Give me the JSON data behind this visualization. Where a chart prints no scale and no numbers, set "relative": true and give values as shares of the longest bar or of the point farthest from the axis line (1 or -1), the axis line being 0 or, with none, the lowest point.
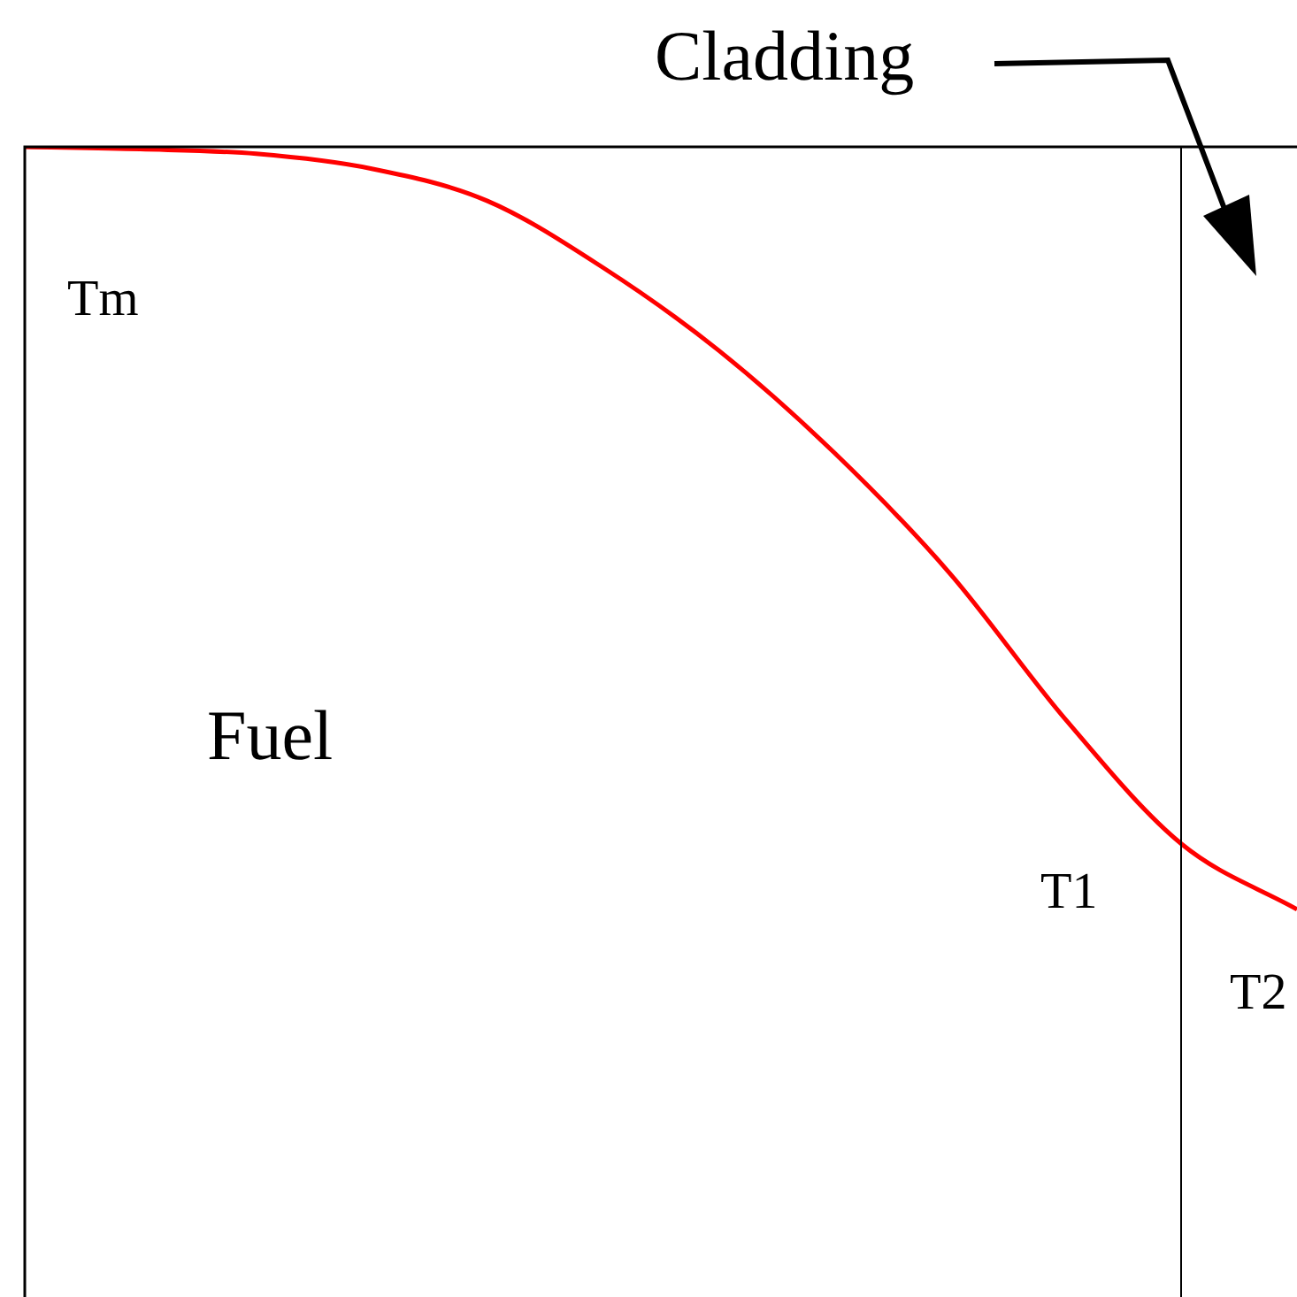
{
  "chart_data": {
    "type": "line",
    "relative": true,
    "color": "#ff0000",
    "categories": [
      null,
      null,
      null,
      null,
      null,
      null,
      null,
      null,
      null,
      null,
      null,
      null
    ],
    "values": [
      1,
      0.998,
      0.994,
      0.981,
      0.953,
      0.895,
      0.823,
      0.734,
      0.629,
      0.502,
      0.394,
      0.337
    ],
    "marker": "none",
    "line_style": "solid",
    "legend": false,
    "annotations": [
      "Cladding",
      "Tm",
      "Fuel",
      "T1",
      "T2"
    ]
  }
}
